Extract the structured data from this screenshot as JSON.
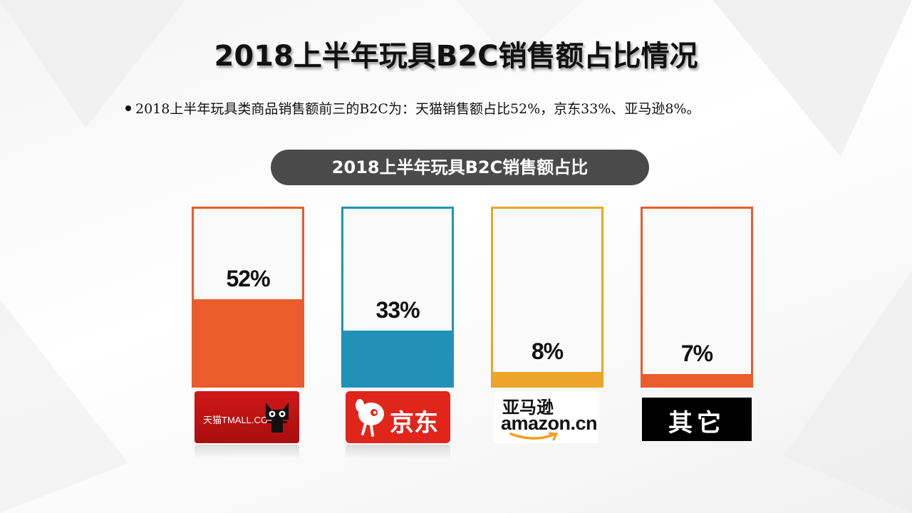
{
  "title": "2018上半年玩具B2C销售额占比情况",
  "bullet": "2018上半年玩具类商品销售额前三的B2C为：天猫销售额占比52%，京东33%、亚马逊8%。",
  "chart_data": {
    "type": "bar",
    "title": "2018上半年玩具B2C销售额占比",
    "categories": [
      "天猫",
      "京东",
      "亚马逊",
      "其它"
    ],
    "values": [
      52,
      33,
      8,
      7
    ],
    "value_labels": [
      "52%",
      "33%",
      "8%",
      "7%"
    ],
    "ylim": [
      0,
      100
    ],
    "colors": [
      "#ea5c2b",
      "#2291b8",
      "#eaa52a",
      "#ea5c2b"
    ],
    "legend": "none",
    "grid": false
  },
  "logos": {
    "tmall": "天猫TMALL.COM",
    "jd": "京东",
    "amazon_cn": "亚马逊",
    "amazon_en": "amazon.cn",
    "other": "其它"
  },
  "icons": [
    "tmall-cat-icon",
    "jd-dog-icon",
    "amazon-smile-icon"
  ]
}
